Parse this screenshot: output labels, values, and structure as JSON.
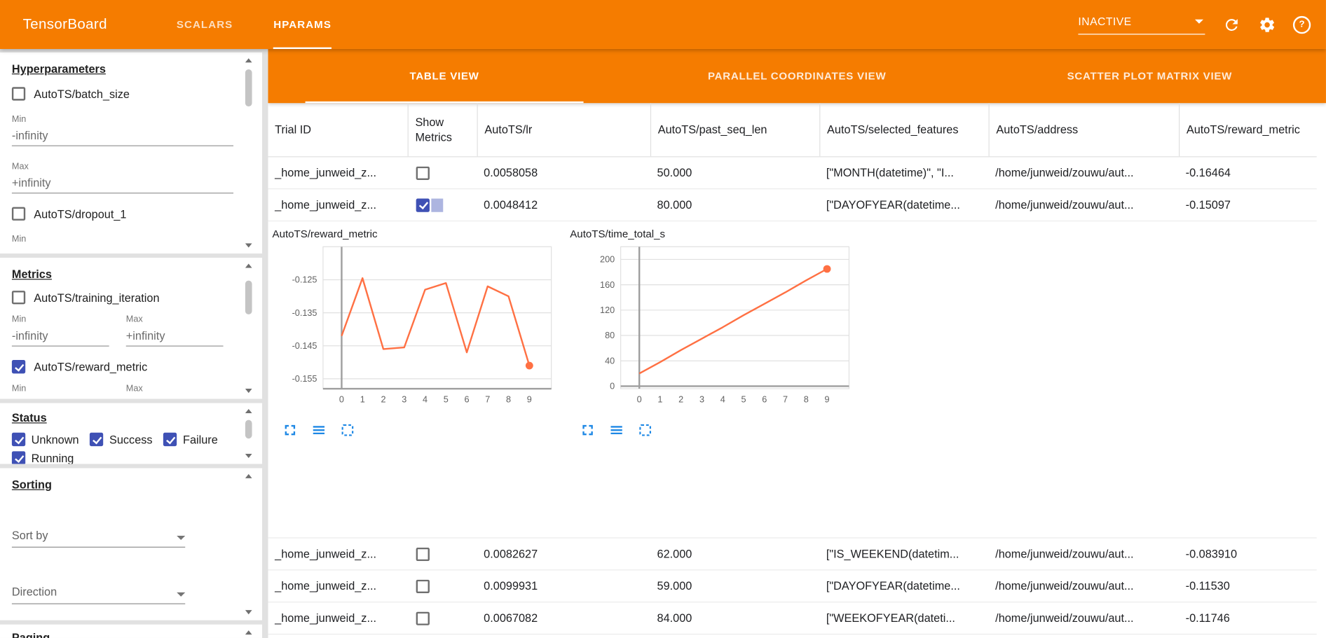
{
  "colors": {
    "accent_orange": "#f57c00",
    "checkbox_blue": "#3f51b5",
    "chart_line": "#ff7043",
    "tool_icon_blue": "#1e88e5"
  },
  "header": {
    "logo": "TensorBoard",
    "nav_tabs": [
      {
        "label": "SCALARS",
        "active": false
      },
      {
        "label": "HPARAMS",
        "active": true
      }
    ],
    "run_selector": {
      "value": "INACTIVE"
    },
    "icon_names": [
      "refresh-icon",
      "settings-icon",
      "help-icon"
    ]
  },
  "sidebar": {
    "hyperparameters": {
      "title": "Hyperparameters",
      "param1": {
        "label": "AutoTS/batch_size",
        "checked": false,
        "min_label": "Min",
        "min_value": "-infinity",
        "max_label": "Max",
        "max_value": "+infinity"
      },
      "param2": {
        "label": "AutoTS/dropout_1",
        "checked": false,
        "min_label": "Min"
      }
    },
    "metrics": {
      "title": "Metrics",
      "metric1": {
        "label": "AutoTS/training_iteration",
        "checked": false,
        "min_label": "Min",
        "min_value": "-infinity",
        "max_label": "Max",
        "max_value": "+infinity"
      },
      "metric2": {
        "label": "AutoTS/reward_metric",
        "checked": true,
        "min_label": "Min",
        "max_label": "Max"
      }
    },
    "status": {
      "title": "Status",
      "options": [
        {
          "label": "Unknown",
          "checked": true
        },
        {
          "label": "Success",
          "checked": true
        },
        {
          "label": "Failure",
          "checked": true
        },
        {
          "label": "Running",
          "checked": true
        }
      ]
    },
    "sorting": {
      "title": "Sorting",
      "sort_by_placeholder": "Sort by",
      "direction_placeholder": "Direction"
    },
    "paging": {
      "title": "Paging"
    }
  },
  "main": {
    "view_tabs": [
      {
        "label": "TABLE VIEW",
        "active": true
      },
      {
        "label": "PARALLEL COORDINATES VIEW",
        "active": false
      },
      {
        "label": "SCATTER PLOT MATRIX VIEW",
        "active": false
      }
    ],
    "table": {
      "columns": [
        "Trial ID",
        "Show Metrics",
        "AutoTS/lr",
        "AutoTS/past_seq_len",
        "AutoTS/selected_features",
        "AutoTS/address",
        "AutoTS/reward_metric"
      ],
      "rows": [
        {
          "trial_id": "_home_junweid_z...",
          "show_metrics": false,
          "lr": "0.0058058",
          "past_seq_len": "50.000",
          "selected_features": "[\"MONTH(datetime)\", \"I...",
          "address": "/home/junweid/zouwu/aut...",
          "reward_metric": "-0.16464"
        },
        {
          "trial_id": "_home_junweid_z...",
          "show_metrics": true,
          "lr": "0.0048412",
          "past_seq_len": "80.000",
          "selected_features": "[\"DAYOFYEAR(datetime...",
          "address": "/home/junweid/zouwu/aut...",
          "reward_metric": "-0.15097"
        },
        {
          "trial_id": "_home_junweid_z...",
          "show_metrics": false,
          "lr": "0.0082627",
          "past_seq_len": "62.000",
          "selected_features": "[\"IS_WEEKEND(datetim...",
          "address": "/home/junweid/zouwu/aut...",
          "reward_metric": "-0.083910"
        },
        {
          "trial_id": "_home_junweid_z...",
          "show_metrics": false,
          "lr": "0.0099931",
          "past_seq_len": "59.000",
          "selected_features": "[\"DAYOFYEAR(datetime...",
          "address": "/home/junweid/zouwu/aut...",
          "reward_metric": "-0.11530"
        },
        {
          "trial_id": "_home_junweid_z...",
          "show_metrics": false,
          "lr": "0.0067082",
          "past_seq_len": "84.000",
          "selected_features": "[\"WEEKOFYEAR(dateti...",
          "address": "/home/junweid/zouwu/aut...",
          "reward_metric": "-0.11746"
        }
      ]
    },
    "chart_tool_icons": [
      "fullscreen-icon",
      "line-style-icon",
      "marquee-select-icon"
    ]
  },
  "chart_data": [
    {
      "type": "line",
      "title": "AutoTS/reward_metric",
      "x": [
        0,
        1,
        2,
        3,
        4,
        5,
        6,
        7,
        8,
        9
      ],
      "values": [
        -0.142,
        -0.1245,
        -0.146,
        -0.1455,
        -0.128,
        -0.126,
        -0.147,
        -0.127,
        -0.13,
        -0.151
      ],
      "ylim": [
        -0.158,
        -0.115
      ],
      "yticks": [
        -0.125,
        -0.135,
        -0.145,
        -0.155
      ],
      "ytick_labels": [
        "-0.125",
        "-0.135",
        "-0.145",
        "-0.155"
      ],
      "xticks": [
        0,
        1,
        2,
        3,
        4,
        5,
        6,
        7,
        8,
        9
      ],
      "xlabel": "",
      "ylabel": "",
      "grid": true,
      "line_color": "#ff7043",
      "end_marker": true
    },
    {
      "type": "line",
      "title": "AutoTS/time_total_s",
      "x": [
        0,
        1,
        2,
        3,
        4,
        5,
        6,
        7,
        8,
        9
      ],
      "values": [
        20,
        38,
        57,
        75,
        93,
        112,
        130,
        148,
        167,
        185
      ],
      "ylim": [
        -4,
        220
      ],
      "yticks": [
        0,
        40,
        80,
        120,
        160,
        200
      ],
      "ytick_labels": [
        "0",
        "40",
        "80",
        "120",
        "160",
        "200"
      ],
      "xticks": [
        0,
        1,
        2,
        3,
        4,
        5,
        6,
        7,
        8,
        9
      ],
      "xlabel": "",
      "ylabel": "",
      "grid": true,
      "line_color": "#ff7043",
      "end_marker": true
    }
  ]
}
